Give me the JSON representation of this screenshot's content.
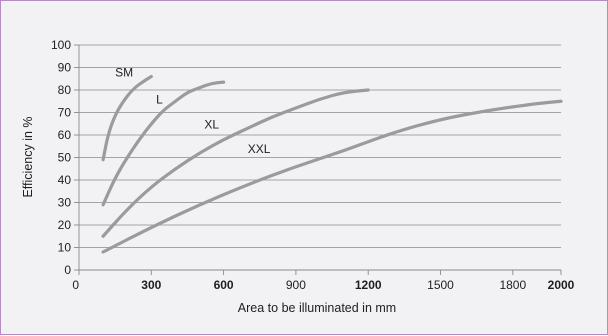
{
  "chart_data": {
    "type": "line",
    "xlabel": "Area to be illuminated in mm",
    "ylabel": "Efficiency in %",
    "xlim": [
      0,
      2000
    ],
    "ylim": [
      0,
      100
    ],
    "x_ticks": [
      {
        "value": 0,
        "label": "0",
        "bold": false
      },
      {
        "value": 300,
        "label": "300",
        "bold": true
      },
      {
        "value": 600,
        "label": "600",
        "bold": true
      },
      {
        "value": 900,
        "label": "900",
        "bold": false
      },
      {
        "value": 1200,
        "label": "1200",
        "bold": true
      },
      {
        "value": 1500,
        "label": "1500",
        "bold": false
      },
      {
        "value": 1800,
        "label": "1800",
        "bold": false
      },
      {
        "value": 2000,
        "label": "2000",
        "bold": true
      }
    ],
    "y_ticks": [
      0,
      10,
      20,
      30,
      40,
      50,
      60,
      70,
      80,
      90,
      100
    ],
    "grid": true,
    "series": [
      {
        "name": "SM",
        "x": [
          100,
          120,
          150,
          190,
          230,
          270,
          300
        ],
        "y": [
          49,
          60,
          69,
          76,
          81,
          84,
          86
        ],
        "label_at": [
          150,
          86
        ]
      },
      {
        "name": "L",
        "x": [
          100,
          150,
          200,
          250,
          300,
          350,
          400,
          450,
          500,
          550,
          600
        ],
        "y": [
          29,
          41,
          50,
          58,
          65,
          71,
          75,
          79,
          81,
          83,
          83.5
        ],
        "label_at": [
          320,
          74
        ]
      },
      {
        "name": "XL",
        "x": [
          100,
          200,
          300,
          400,
          500,
          600,
          700,
          800,
          900,
          1000,
          1100,
          1200
        ],
        "y": [
          15,
          27,
          37,
          45,
          52,
          58,
          63,
          68,
          72,
          76,
          79,
          80
        ],
        "label_at": [
          520,
          63
        ]
      },
      {
        "name": "XXL",
        "x": [
          100,
          300,
          500,
          700,
          900,
          1100,
          1300,
          1500,
          1700,
          1900,
          2000
        ],
        "y": [
          8,
          19,
          29,
          38,
          46,
          53,
          61,
          67,
          71,
          74,
          75
        ],
        "label_at": [
          700,
          52
        ]
      }
    ]
  }
}
